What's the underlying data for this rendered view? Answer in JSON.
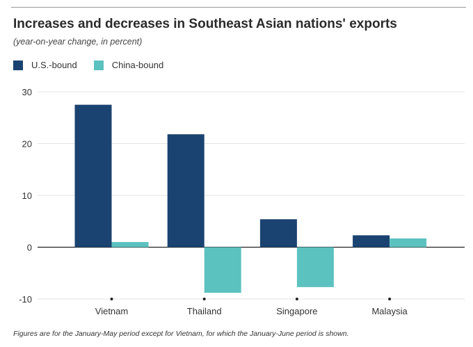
{
  "chart_data": {
    "type": "bar",
    "title": "Increases and decreases in Southeast Asian nations' exports",
    "subtitle": "(year-on-year change, in percent)",
    "categories": [
      "Vietnam",
      "Thailand",
      "Singapore",
      "Malaysia"
    ],
    "series": [
      {
        "name": "U.S.-bound",
        "color": "#1b4371",
        "values": [
          27.5,
          21.8,
          5.4,
          2.3
        ]
      },
      {
        "name": "China-bound",
        "color": "#5cc2c0",
        "values": [
          1.0,
          -8.8,
          -7.7,
          1.7
        ]
      }
    ],
    "yticks": [
      30,
      20,
      10,
      0,
      -10
    ],
    "ylim": [
      -10,
      30
    ],
    "grid": true,
    "legend_position": "top-left",
    "note": "Figures are for the January-May period except for Vietnam, for which the January-June period is shown."
  }
}
